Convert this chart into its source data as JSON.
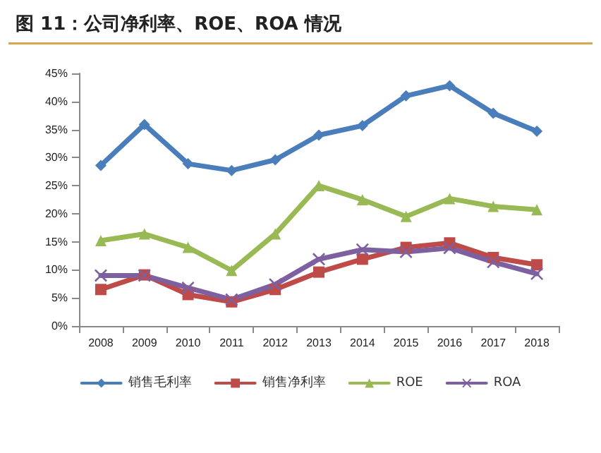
{
  "chart_data": {
    "type": "line",
    "title": "图 11：公司净利率、ROE、ROA 情况",
    "categories": [
      "2008",
      "2009",
      "2010",
      "2011",
      "2012",
      "2013",
      "2014",
      "2015",
      "2016",
      "2017",
      "2018"
    ],
    "series": [
      {
        "name": "销售毛利率",
        "color": "#4a7ebb",
        "marker": "diamond",
        "values": [
          28.6,
          35.9,
          28.9,
          27.7,
          29.6,
          34.0,
          35.7,
          41.0,
          42.8,
          37.9,
          34.7
        ]
      },
      {
        "name": "销售净利率",
        "color": "#be4b48",
        "marker": "square",
        "values": [
          6.5,
          9.1,
          5.6,
          4.3,
          6.5,
          9.6,
          11.9,
          14.0,
          14.8,
          12.2,
          10.9
        ]
      },
      {
        "name": "ROE",
        "color": "#98b954",
        "marker": "triangle",
        "values": [
          15.2,
          16.4,
          14.0,
          9.9,
          16.4,
          25.0,
          22.5,
          19.5,
          22.7,
          21.3,
          20.7
        ]
      },
      {
        "name": "ROA",
        "color": "#7d60a0",
        "marker": "cross",
        "values": [
          9.0,
          9.0,
          6.8,
          4.7,
          7.4,
          11.9,
          13.6,
          13.2,
          13.9,
          11.4,
          9.3
        ]
      }
    ],
    "ylim": [
      0,
      45
    ],
    "yticks": [
      {
        "value": 0,
        "label": "0%"
      },
      {
        "value": 5,
        "label": "5%"
      },
      {
        "value": 10,
        "label": "10%"
      },
      {
        "value": 15,
        "label": "15%"
      },
      {
        "value": 20,
        "label": "20%"
      },
      {
        "value": 25,
        "label": "25%"
      },
      {
        "value": 30,
        "label": "30%"
      },
      {
        "value": 35,
        "label": "35%"
      },
      {
        "value": 40,
        "label": "40%"
      },
      {
        "value": 45,
        "label": "45%"
      }
    ],
    "grid": false,
    "legend": "bottom",
    "line_style": "solid"
  }
}
